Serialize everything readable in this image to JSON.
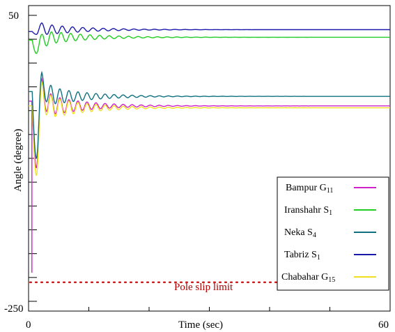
{
  "chart_data": {
    "type": "line",
    "title": "",
    "xlabel": "Time (sec)",
    "ylabel": "Angle (degree)",
    "xlim": [
      0,
      60
    ],
    "ylim": [
      -250,
      50
    ],
    "x_tick_labels": [
      {
        "value": 0,
        "label": "0"
      },
      {
        "value": 60,
        "label": "60"
      }
    ],
    "y_tick_labels": [
      {
        "value": 50,
        "label": "50"
      },
      {
        "value": -250,
        "label": "-250"
      }
    ],
    "grid": false,
    "legend_position": "bottom-right",
    "series": [
      {
        "name": "Bampur",
        "sub": "11",
        "name_suffix": "G",
        "color": "#d020c8",
        "final": -45,
        "initial": -40,
        "dip": -110,
        "peak": -17,
        "amp": 13,
        "decay": 6.5,
        "period": 1.5,
        "start_spike": -220
      },
      {
        "name": "Iranshahr",
        "sub": "1",
        "name_suffix": "S",
        "color": "#22cc22",
        "final": 27,
        "initial": 24,
        "dip": 10,
        "peak": 30,
        "amp": 8,
        "decay": 7,
        "period": 1.6
      },
      {
        "name": "Neka",
        "sub": "4",
        "name_suffix": "S",
        "color": "#107080",
        "final": -35,
        "initial": -30,
        "dip": -100,
        "peak": -10,
        "amp": 12,
        "decay": 6.5,
        "period": 1.5
      },
      {
        "name": "Tabriz",
        "sub": "1",
        "name_suffix": "S",
        "color": "#1a1aaa",
        "final": 35,
        "initial": 33,
        "dip": 30,
        "peak": 42,
        "amp": 6,
        "decay": 7,
        "period": 1.7
      },
      {
        "name": "Chabahar",
        "sub": "15",
        "name_suffix": "G",
        "color": "#f0e020",
        "final": -47,
        "initial": -45,
        "dip": -118,
        "peak": -20,
        "amp": 14,
        "decay": 6.5,
        "period": 1.5
      }
    ],
    "annotations": [
      {
        "text": "Pole slip limit",
        "y": -230,
        "color": "#c00000",
        "style": "dotted"
      }
    ]
  }
}
